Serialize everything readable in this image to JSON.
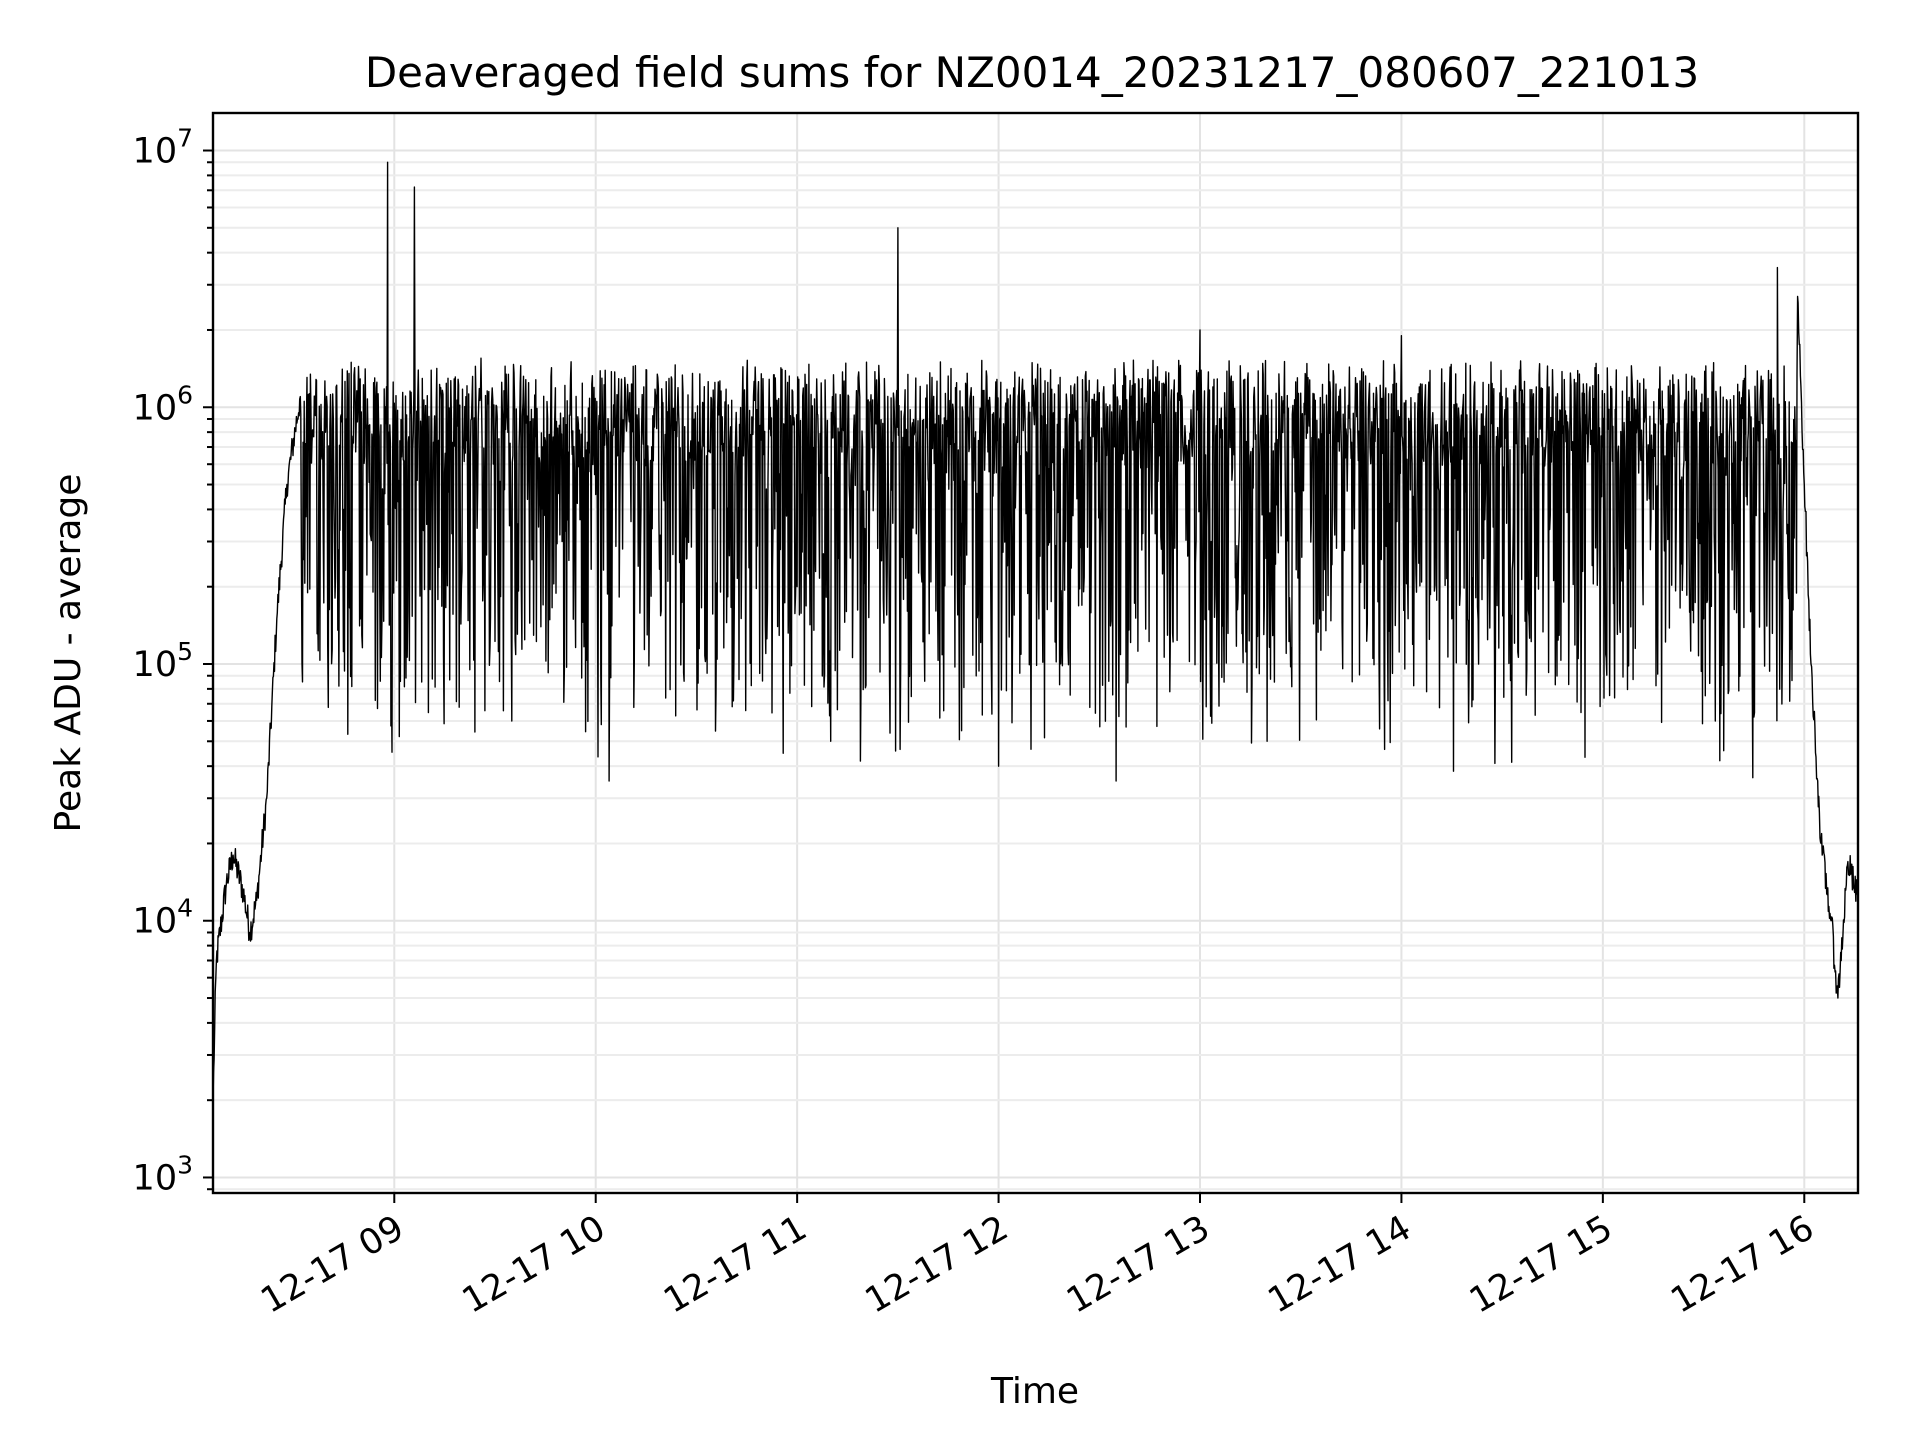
{
  "chart_data": {
    "type": "line",
    "title": "Deaveraged field sums for NZ0014_20231217_080607_221013",
    "xlabel": "Time",
    "ylabel": "Peak ADU - average",
    "y_scale": "log",
    "ylim": [
      870,
      14000000
    ],
    "xlim": [
      "2023-12-17 08:06",
      "2023-12-17 16:16"
    ],
    "grid": "on (major and minor)",
    "legend": "none",
    "x_ticks": [
      "2023-12-17 09:00",
      "2023-12-17 10:00",
      "2023-12-17 11:00",
      "2023-12-17 12:00",
      "2023-12-17 13:00",
      "2023-12-17 14:00",
      "2023-12-17 15:00",
      "2023-12-17 16:00"
    ],
    "x_tick_labels": [
      "12-17 09",
      "12-17 10",
      "12-17 11",
      "12-17 12",
      "12-17 13",
      "12-17 14",
      "12-17 15",
      "12-17 16"
    ],
    "y_ticks": [
      {
        "base": "10",
        "exp": "3",
        "value": 1000
      },
      {
        "base": "10",
        "exp": "4",
        "value": 10000
      },
      {
        "base": "10",
        "exp": "5",
        "value": 100000
      },
      {
        "base": "10",
        "exp": "6",
        "value": 1000000
      },
      {
        "base": "10",
        "exp": "7",
        "value": 10000000
      }
    ],
    "series": [
      {
        "color": "#000000",
        "points": [
          [
            "2023-12-17 08:06",
            2000
          ],
          [
            "2023-12-17 08:07",
            7000
          ],
          [
            "2023-12-17 08:10",
            14000
          ],
          [
            "2023-12-17 08:12",
            18000
          ],
          [
            "2023-12-17 08:15",
            13000
          ],
          [
            "2023-12-17 08:17",
            9000
          ],
          [
            "2023-12-17 08:19",
            12000
          ],
          [
            "2023-12-17 08:22",
            30000
          ],
          [
            "2023-12-17 08:25",
            150000
          ],
          [
            "2023-12-17 08:28",
            500000
          ],
          [
            "2023-12-17 08:32",
            1100000
          ],
          [
            "2023-12-17 08:38",
            600000
          ],
          [
            "2023-12-17 08:45",
            400000
          ],
          [
            "2023-12-17 08:50",
            150000
          ],
          [
            "2023-12-17 08:58",
            9000000
          ],
          [
            "2023-12-17 09:06",
            7200000
          ],
          [
            "2023-12-17 09:20",
            200000
          ],
          [
            "2023-12-17 09:35",
            60000
          ],
          [
            "2023-12-17 09:50",
            300000
          ],
          [
            "2023-12-17 10:04",
            35000
          ],
          [
            "2023-12-17 10:15",
            1400000
          ],
          [
            "2023-12-17 10:30",
            300000
          ],
          [
            "2023-12-17 10:45",
            1300000
          ],
          [
            "2023-12-17 11:00",
            200000
          ],
          [
            "2023-12-17 11:10",
            50000
          ],
          [
            "2023-12-17 11:30",
            5000000
          ],
          [
            "2023-12-17 11:40",
            800000
          ],
          [
            "2023-12-17 12:00",
            40000
          ],
          [
            "2023-12-17 12:20",
            300000
          ],
          [
            "2023-12-17 12:35",
            35000
          ],
          [
            "2023-12-17 12:50",
            1200000
          ],
          [
            "2023-12-17 13:00",
            2000000
          ],
          [
            "2023-12-17 13:20",
            50000
          ],
          [
            "2023-12-17 13:40",
            400000
          ],
          [
            "2023-12-17 14:00",
            1900000
          ],
          [
            "2023-12-17 14:15",
            150000
          ],
          [
            "2023-12-17 14:30",
            1100000
          ],
          [
            "2023-12-17 14:45",
            1400000
          ],
          [
            "2023-12-17 15:00",
            700000
          ],
          [
            "2023-12-17 15:15",
            400000
          ],
          [
            "2023-12-17 15:30",
            150000
          ],
          [
            "2023-12-17 15:40",
            300000
          ],
          [
            "2023-12-17 15:52",
            3500000
          ],
          [
            "2023-12-17 15:58",
            2700000
          ],
          [
            "2023-12-17 16:02",
            100000
          ],
          [
            "2023-12-17 16:05",
            20000
          ],
          [
            "2023-12-17 16:08",
            10000
          ],
          [
            "2023-12-17 16:10",
            5000
          ],
          [
            "2023-12-17 16:13",
            17000
          ],
          [
            "2023-12-17 16:16",
            12000
          ]
        ]
      }
    ]
  }
}
